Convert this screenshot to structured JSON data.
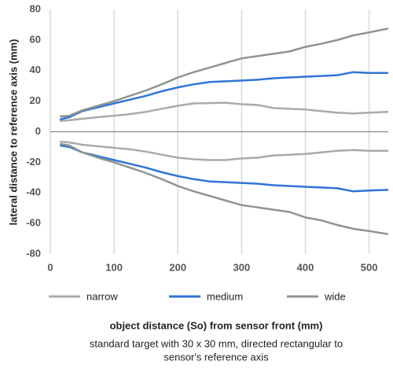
{
  "chart_data": {
    "type": "line",
    "xlabel": "object distance (So) from sensor front (mm)",
    "subtitle_lines": [
      "standard target with 30 x 30 mm, directed rectangular to",
      "sensor's reference axis"
    ],
    "ylabel": "lateral distance to reference axis (mm)",
    "x": [
      15,
      30,
      50,
      75,
      100,
      125,
      150,
      175,
      200,
      225,
      250,
      275,
      300,
      325,
      350,
      375,
      400,
      425,
      450,
      475,
      500,
      530
    ],
    "xlim": [
      0,
      530
    ],
    "xticks": [
      0,
      100,
      200,
      300,
      400,
      500
    ],
    "ylim": [
      -80,
      80
    ],
    "yticks": [
      -80,
      -60,
      -40,
      -20,
      0,
      20,
      40,
      60,
      80
    ],
    "grid": "x",
    "series": [
      {
        "name": "narrow",
        "color": "#aaaaaa",
        "values": [
          7,
          7.5,
          8.5,
          9.5,
          10.5,
          11.5,
          13,
          15,
          17,
          18.5,
          18.8,
          19,
          18,
          17.5,
          15.5,
          15,
          14.5,
          13.5,
          12.5,
          12,
          12.5,
          13
        ],
        "values_negative": [
          -6.5,
          -7,
          -8.5,
          -9.5,
          -10.5,
          -11.5,
          -13,
          -15,
          -17,
          -18,
          -18.5,
          -18.5,
          -17.5,
          -17,
          -15.5,
          -15,
          -14.5,
          -13.5,
          -12.5,
          -12,
          -12.5,
          -12.5
        ]
      },
      {
        "name": "medium",
        "color": "#2f74d6",
        "values": [
          8,
          9.5,
          13.5,
          16,
          18.5,
          21,
          23.5,
          26.5,
          29,
          31,
          32.5,
          33,
          33.5,
          34,
          35,
          35.5,
          36,
          36.5,
          37,
          39,
          38.5,
          38.5
        ],
        "values_negative": [
          -9,
          -10,
          -13.5,
          -16,
          -18.5,
          -21,
          -23.5,
          -26.5,
          -29,
          -31,
          -32.5,
          -33,
          -33.5,
          -34,
          -35,
          -35.5,
          -36,
          -36.5,
          -37,
          -39,
          -38.5,
          -38
        ]
      },
      {
        "name": "wide",
        "color": "#8c9590",
        "values": [
          10,
          10.5,
          14,
          17,
          20,
          23.5,
          27,
          31,
          35.5,
          39,
          42,
          45,
          48,
          49.5,
          51,
          52.5,
          55.5,
          57.5,
          60,
          63,
          65,
          67.5
        ],
        "values_negative": [
          -8,
          -9,
          -13.5,
          -17,
          -20,
          -23.5,
          -27,
          -31,
          -35.5,
          -39,
          -42,
          -45,
          -48,
          -49.5,
          -51,
          -52.5,
          -56,
          -58,
          -61,
          -63.5,
          -65,
          -67
        ]
      }
    ]
  }
}
